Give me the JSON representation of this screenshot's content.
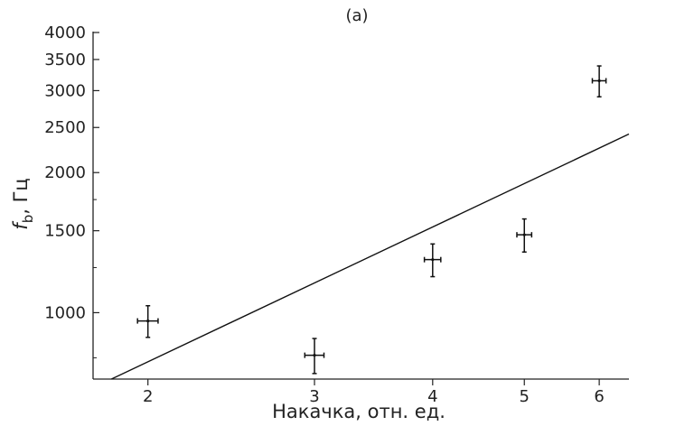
{
  "chart_data": {
    "type": "scatter",
    "title": "(a)",
    "xlabel": "Накачка, отн. ед.",
    "ylabel_main": "f",
    "ylabel_sub": "b",
    "ylabel_rest": ", Гц",
    "x_scale": "log",
    "y_scale": "log",
    "xlim": [
      1.75,
      6.45
    ],
    "ylim": [
      720,
      4000
    ],
    "x_ticks": [
      2,
      3,
      4,
      5,
      6
    ],
    "x_tick_labels": [
      "2",
      "3",
      "4",
      "5",
      "6"
    ],
    "y_ticks": [
      1000,
      1500,
      2000,
      2500,
      3000,
      3500,
      4000
    ],
    "y_tick_labels": [
      "1000",
      "1500",
      "2000",
      "2500",
      "3000",
      "3500",
      "4000"
    ],
    "y_minor_ticks": [
      800,
      1250,
      1750
    ],
    "points": [
      {
        "x": 2,
        "y": 960,
        "x_err": 0.05,
        "y_err": 75
      },
      {
        "x": 3,
        "y": 810,
        "x_err": 0.07,
        "y_err": 70
      },
      {
        "x": 4,
        "y": 1300,
        "x_err": 0.08,
        "y_err": 105
      },
      {
        "x": 5,
        "y": 1470,
        "x_err": 0.09,
        "y_err": 120
      },
      {
        "x": 6,
        "y": 3150,
        "x_err": 0.1,
        "y_err": 240
      }
    ],
    "fit_line": {
      "x": [
        1.83,
        6.45
      ],
      "y": [
        720,
        2420
      ]
    },
    "grid": false,
    "legend": "none"
  },
  "colors": {
    "axis": "#222222",
    "points": "#111111",
    "fit": "#111111"
  }
}
